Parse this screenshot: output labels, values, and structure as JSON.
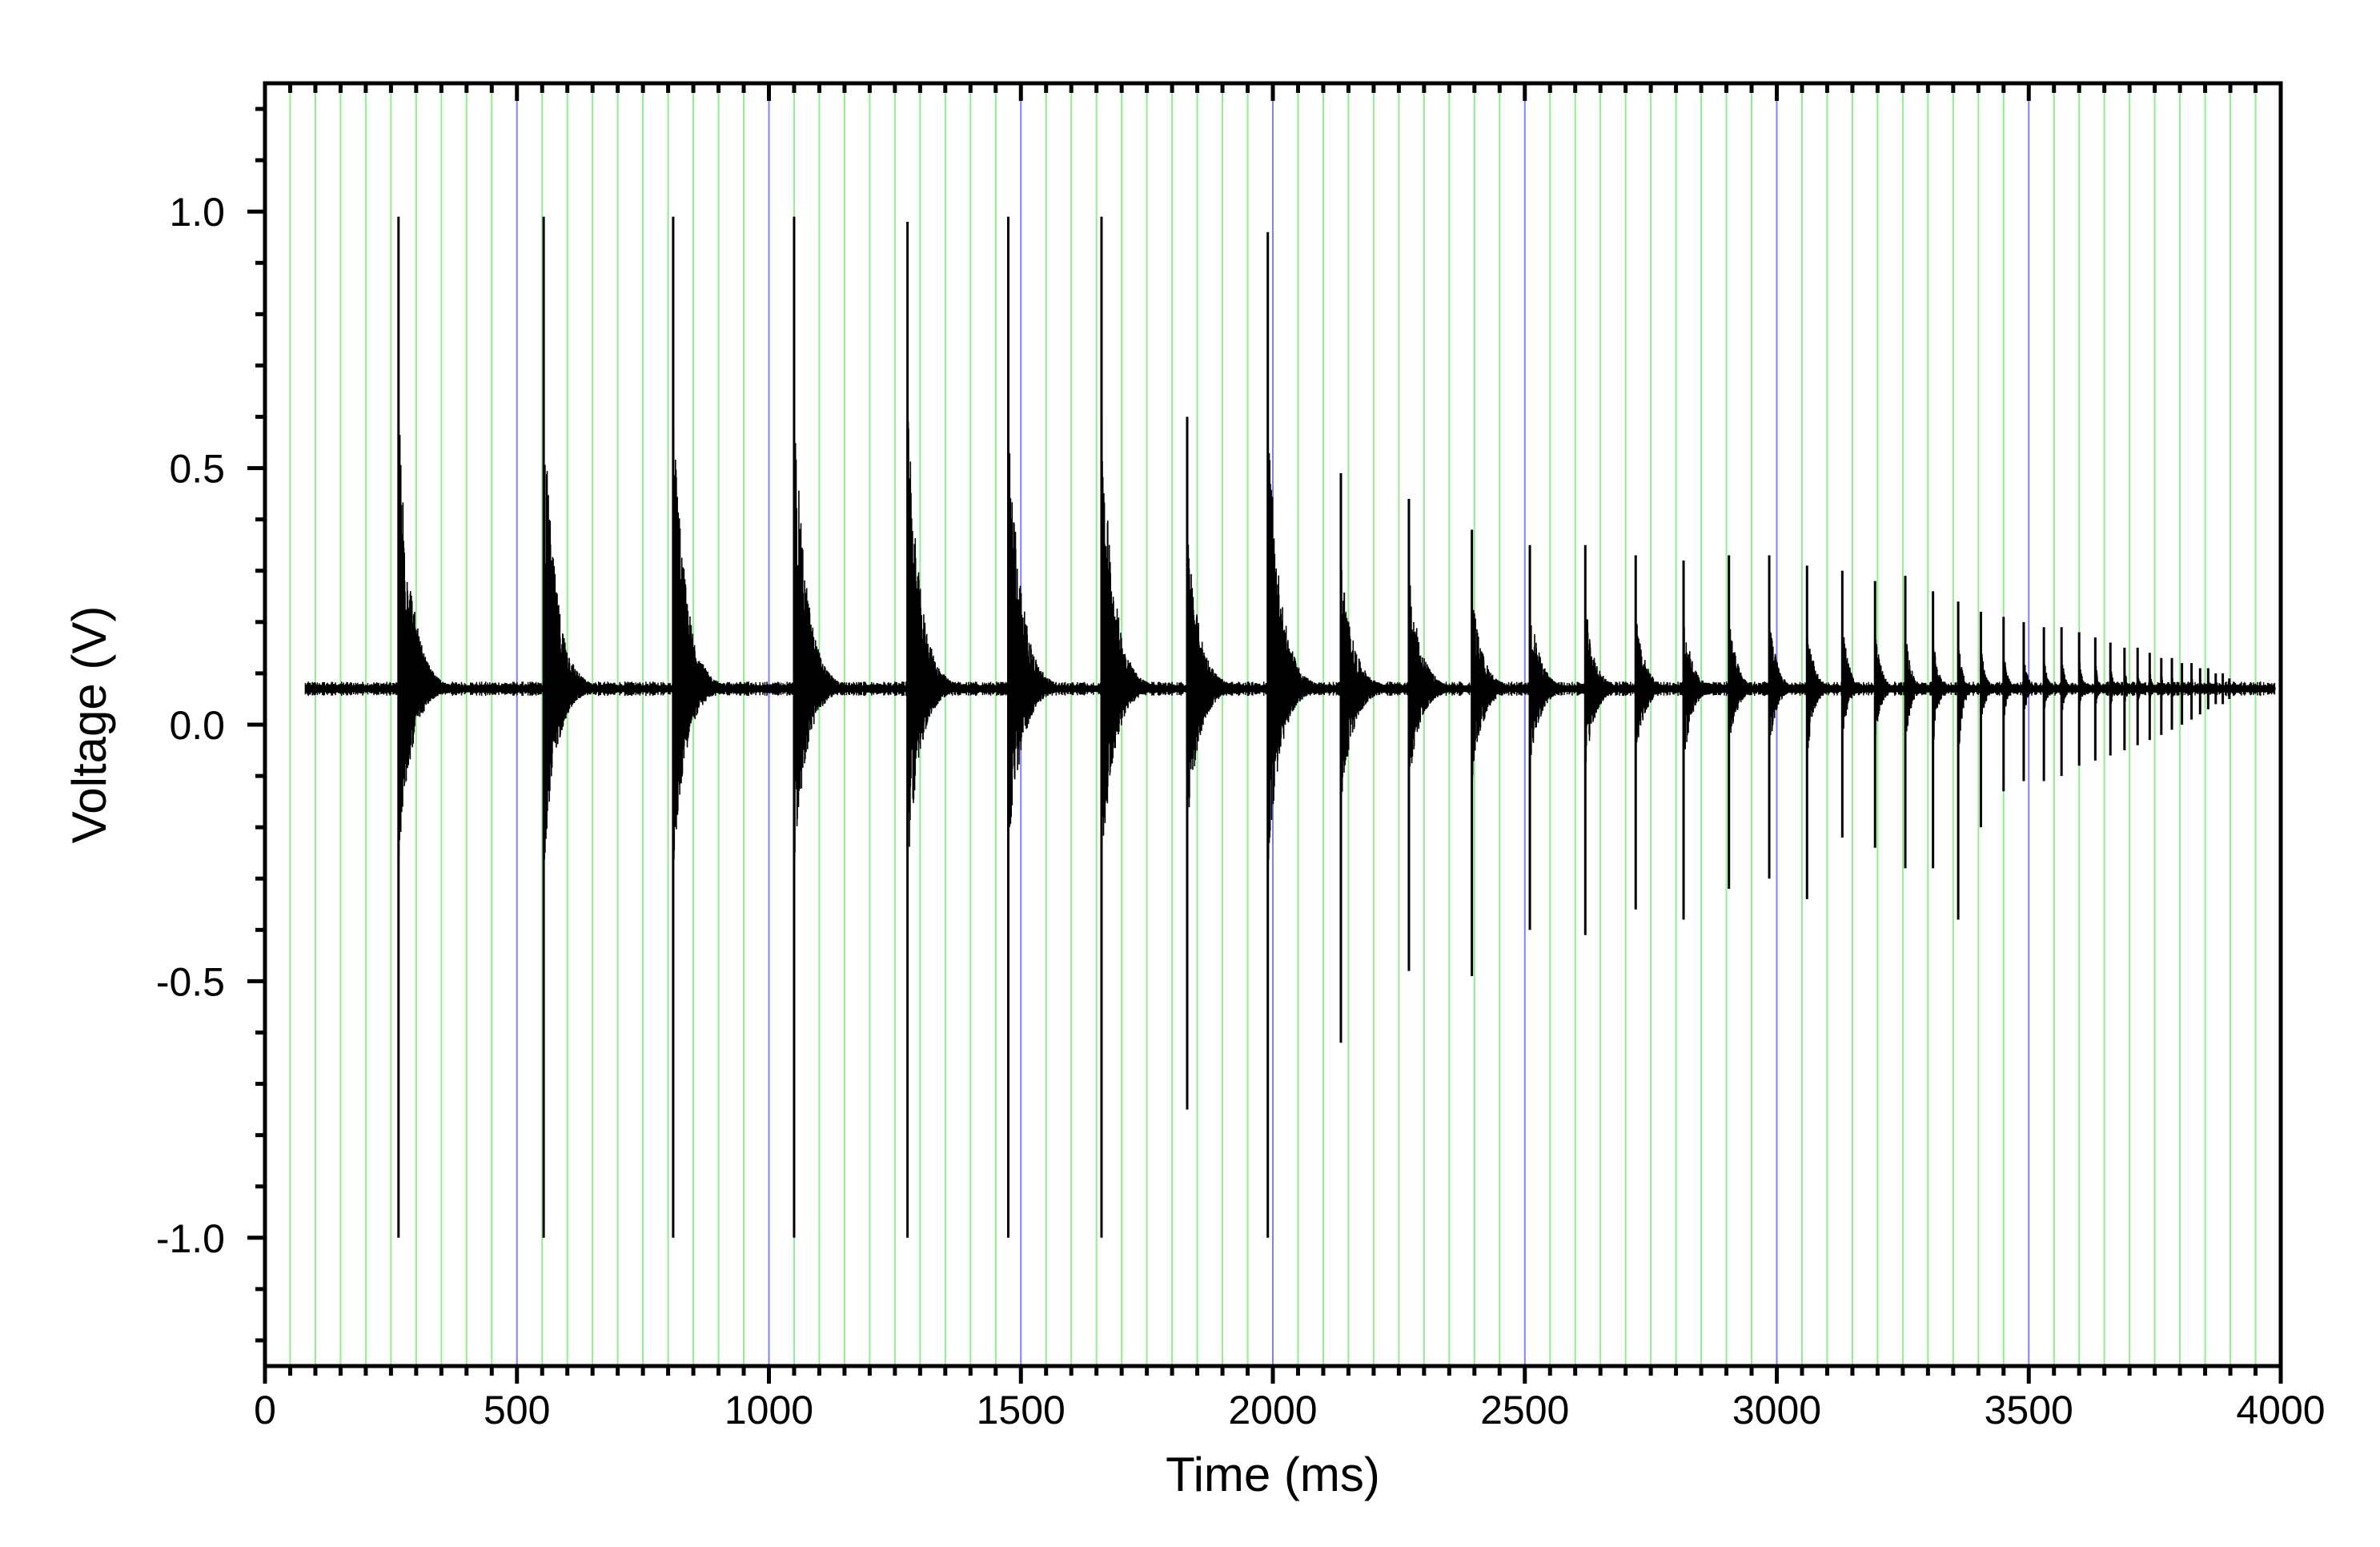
{
  "chart_data": {
    "type": "line",
    "title": "",
    "xlabel": "Time (ms)",
    "ylabel": "Voltage (V)",
    "xlim": [
      0,
      4000
    ],
    "ylim": [
      -1.25,
      1.25
    ],
    "x_ticks": [
      0,
      500,
      1000,
      1500,
      2000,
      2500,
      3000,
      3500,
      4000
    ],
    "x_tick_labels": [
      "0",
      "500",
      "1000",
      "1500",
      "2000",
      "2500",
      "3000",
      "3500",
      "4000"
    ],
    "y_ticks": [
      1.0,
      0.5,
      0.0,
      -0.5,
      -1.0
    ],
    "y_tick_labels": [
      "1.0",
      "0.5",
      "0.0",
      "-0.5",
      "-1.0"
    ],
    "x_minor_step": 50,
    "y_minor_step": 0.1,
    "baseline_voltage": 0.07,
    "signal_range_ms": [
      80,
      3990
    ],
    "grid": {
      "vertical_minor_step": 50,
      "minor_color": "#90ee90",
      "major_color": "#8080ff"
    },
    "series": [
      {
        "color": "#000000",
        "bursts": [
          {
            "t": 265,
            "max": 0.99,
            "min": -1.0
          },
          {
            "t": 553,
            "max": 0.99,
            "min": -1.0
          },
          {
            "t": 810,
            "max": 0.99,
            "min": -1.0
          },
          {
            "t": 1050,
            "max": 0.99,
            "min": -1.0
          },
          {
            "t": 1275,
            "max": 0.98,
            "min": -1.0
          },
          {
            "t": 1475,
            "max": 0.99,
            "min": -1.0
          },
          {
            "t": 1660,
            "max": 0.99,
            "min": -1.0
          },
          {
            "t": 1830,
            "max": 0.6,
            "min": -0.75
          },
          {
            "t": 1990,
            "max": 0.96,
            "min": -1.0
          },
          {
            "t": 2135,
            "max": 0.49,
            "min": -0.62
          },
          {
            "t": 2270,
            "max": 0.44,
            "min": -0.48
          },
          {
            "t": 2395,
            "max": 0.38,
            "min": -0.49
          },
          {
            "t": 2510,
            "max": 0.35,
            "min": -0.4
          },
          {
            "t": 2620,
            "max": 0.35,
            "min": -0.41
          },
          {
            "t": 2720,
            "max": 0.33,
            "min": -0.36
          },
          {
            "t": 2815,
            "max": 0.32,
            "min": -0.38
          },
          {
            "t": 2905,
            "max": 0.33,
            "min": -0.32
          },
          {
            "t": 2985,
            "max": 0.33,
            "min": -0.3
          },
          {
            "t": 3060,
            "max": 0.31,
            "min": -0.34
          },
          {
            "t": 3130,
            "max": 0.3,
            "min": -0.22
          },
          {
            "t": 3195,
            "max": 0.28,
            "min": -0.24
          },
          {
            "t": 3255,
            "max": 0.29,
            "min": -0.28
          },
          {
            "t": 3310,
            "max": 0.26,
            "min": -0.28
          },
          {
            "t": 3360,
            "max": 0.24,
            "min": -0.38
          },
          {
            "t": 3405,
            "max": 0.22,
            "min": -0.2
          },
          {
            "t": 3450,
            "max": 0.21,
            "min": -0.13
          },
          {
            "t": 3490,
            "max": 0.2,
            "min": -0.11
          },
          {
            "t": 3530,
            "max": 0.19,
            "min": -0.11
          },
          {
            "t": 3565,
            "max": 0.19,
            "min": -0.1
          },
          {
            "t": 3600,
            "max": 0.18,
            "min": -0.08
          },
          {
            "t": 3632,
            "max": 0.17,
            "min": -0.07
          },
          {
            "t": 3662,
            "max": 0.16,
            "min": -0.06
          },
          {
            "t": 3690,
            "max": 0.15,
            "min": -0.05
          },
          {
            "t": 3716,
            "max": 0.15,
            "min": -0.04
          },
          {
            "t": 3740,
            "max": 0.14,
            "min": -0.03
          },
          {
            "t": 3763,
            "max": 0.13,
            "min": -0.02
          },
          {
            "t": 3784,
            "max": 0.13,
            "min": -0.01
          },
          {
            "t": 3804,
            "max": 0.12,
            "min": 0.0
          },
          {
            "t": 3823,
            "max": 0.12,
            "min": 0.01
          },
          {
            "t": 3840,
            "max": 0.11,
            "min": 0.02
          },
          {
            "t": 3856,
            "max": 0.11,
            "min": 0.03
          },
          {
            "t": 3871,
            "max": 0.1,
            "min": 0.04
          },
          {
            "t": 3885,
            "max": 0.1,
            "min": 0.04
          },
          {
            "t": 3898,
            "max": 0.09,
            "min": 0.05
          }
        ]
      }
    ]
  }
}
